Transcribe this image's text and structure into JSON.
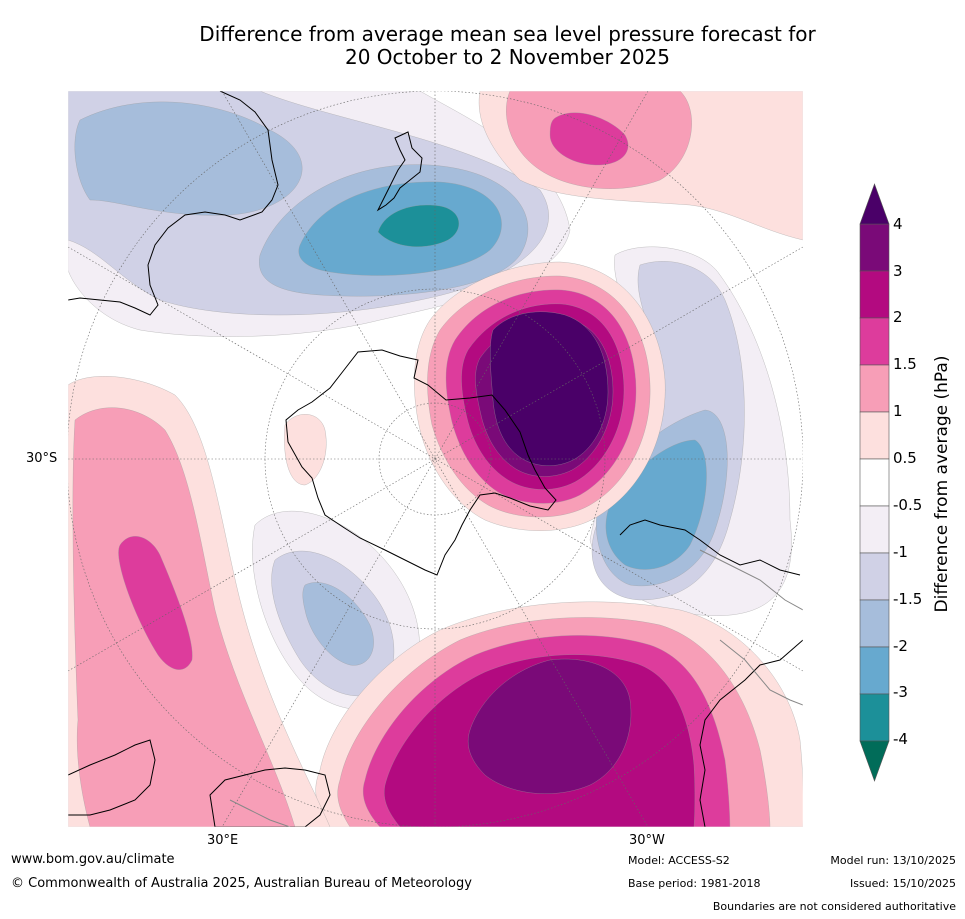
{
  "title": {
    "line1": "Difference from average mean sea level pressure forecast for",
    "line2": "20 October to 2 November 2025"
  },
  "map": {
    "projection": "south-polar stereographic",
    "lat_label_left": "30°S",
    "lon_label_left": "30°E",
    "lon_label_right": "30°W"
  },
  "colorbar": {
    "title": "Difference from average (hPa)",
    "ticks": [
      "4",
      "3",
      "2",
      "1.5",
      "1",
      "0.5",
      "-0.5",
      "-1",
      "-1.5",
      "-2",
      "-3",
      "-4"
    ],
    "colors": {
      "gt4": "#4a0068",
      "b3_4": "#7a0a78",
      "b2_3": "#b30a80",
      "b1_5_2": "#dd3c9c",
      "b1_1_5": "#f79eb7",
      "b0_5_1": "#fde0de",
      "neutral": "#ffffff",
      "m0_5_1": "#f3eef5",
      "m1_1_5": "#d0d1e6",
      "m1_5_2": "#a6bddb",
      "m2_3": "#67a9cf",
      "m3_4": "#1c9099",
      "lt_m4": "#016c59"
    }
  },
  "footer": {
    "website": "www.bom.gov.au/climate",
    "copyright": "© Commonwealth of Australia 2025, Australian Bureau of Meteorology",
    "model": "Model: ACCESS-S2",
    "base_period": "Base period: 1981-2018",
    "model_run": "Model run: 13/10/2025",
    "issued": "Issued: 15/10/2025",
    "disclaimer": "Boundaries are not considered authoritative"
  }
}
